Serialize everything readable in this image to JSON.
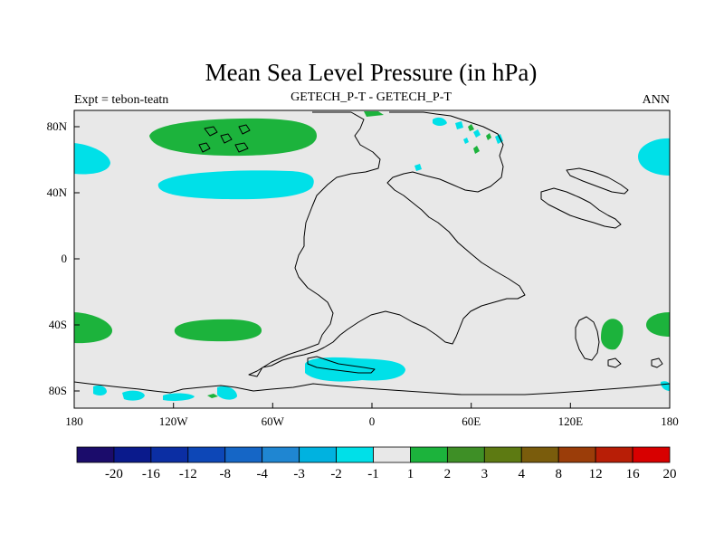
{
  "header": {
    "title": "Mean Sea Level Pressure (in hPa)",
    "left": "Expt = tebon-teatn",
    "center": "GETECH_P-T - GETECH_P-T",
    "right": "ANN"
  },
  "axes": {
    "x_ticks": [
      "180",
      "120W",
      "60W",
      "0",
      "60E",
      "120E",
      "180"
    ],
    "y_ticks": [
      "80N",
      "40N",
      "0",
      "40S",
      "80S"
    ]
  },
  "colorbar": {
    "labels": [
      "-20",
      "-16",
      "-12",
      "-8",
      "-4",
      "-3",
      "-2",
      "-1",
      "1",
      "2",
      "3",
      "4",
      "8",
      "12",
      "16",
      "20"
    ],
    "colors": [
      "#1b0c6b",
      "#0a1a8c",
      "#0b2ea3",
      "#0d47b7",
      "#1566c6",
      "#1f86d2",
      "#00b2e0",
      "#00e0e8",
      "#e8e8e8",
      "#1cb33c",
      "#3e8f26",
      "#5d7a12",
      "#7a5c0c",
      "#9b3d09",
      "#b81e06",
      "#d80000"
    ]
  },
  "map": {
    "background_color": "#e8e8e8",
    "neg_color": "#00e0e8",
    "pos_color": "#1cb33c"
  }
}
